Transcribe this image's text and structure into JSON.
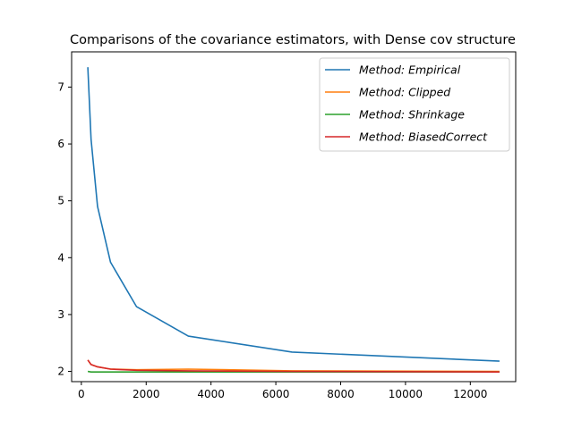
{
  "chart_data": {
    "type": "line",
    "title": "Comparisons of the covariance estimators, with Dense cov structure",
    "xlabel": "",
    "ylabel": "",
    "xlim": [
      -300,
      13400
    ],
    "ylim": [
      1.82,
      7.62
    ],
    "xticks": [
      0,
      2000,
      4000,
      6000,
      8000,
      10000,
      12000
    ],
    "yticks": [
      2,
      3,
      4,
      5,
      6,
      7
    ],
    "grid": false,
    "legend_position": "top-right",
    "series": [
      {
        "name": "Method: Empirical",
        "color": "#1f77b4",
        "x": [
          200,
          300,
          500,
          900,
          1700,
          3300,
          6500,
          12900
        ],
        "y": [
          7.35,
          6.08,
          4.9,
          3.92,
          3.14,
          2.62,
          2.34,
          2.18
        ]
      },
      {
        "name": "Method: Clipped",
        "color": "#ff7f0e",
        "x": [
          200,
          300,
          500,
          900,
          1700,
          3300,
          6500,
          12900
        ],
        "y": [
          2.2,
          2.12,
          2.08,
          2.04,
          2.03,
          2.04,
          2.01,
          2.0
        ]
      },
      {
        "name": "Method: Shrinkage",
        "color": "#2ca02c",
        "x": [
          200,
          300,
          500,
          900,
          1700,
          3300,
          6500,
          12900
        ],
        "y": [
          2.0,
          1.99,
          1.99,
          1.99,
          1.99,
          1.99,
          1.99,
          1.99
        ]
      },
      {
        "name": "Method: BiasedCorrect",
        "color": "#d62728",
        "x": [
          200,
          300,
          500,
          900,
          1700,
          3300,
          6500,
          12900
        ],
        "y": [
          2.2,
          2.12,
          2.08,
          2.04,
          2.02,
          2.01,
          2.0,
          1.99
        ]
      }
    ]
  }
}
